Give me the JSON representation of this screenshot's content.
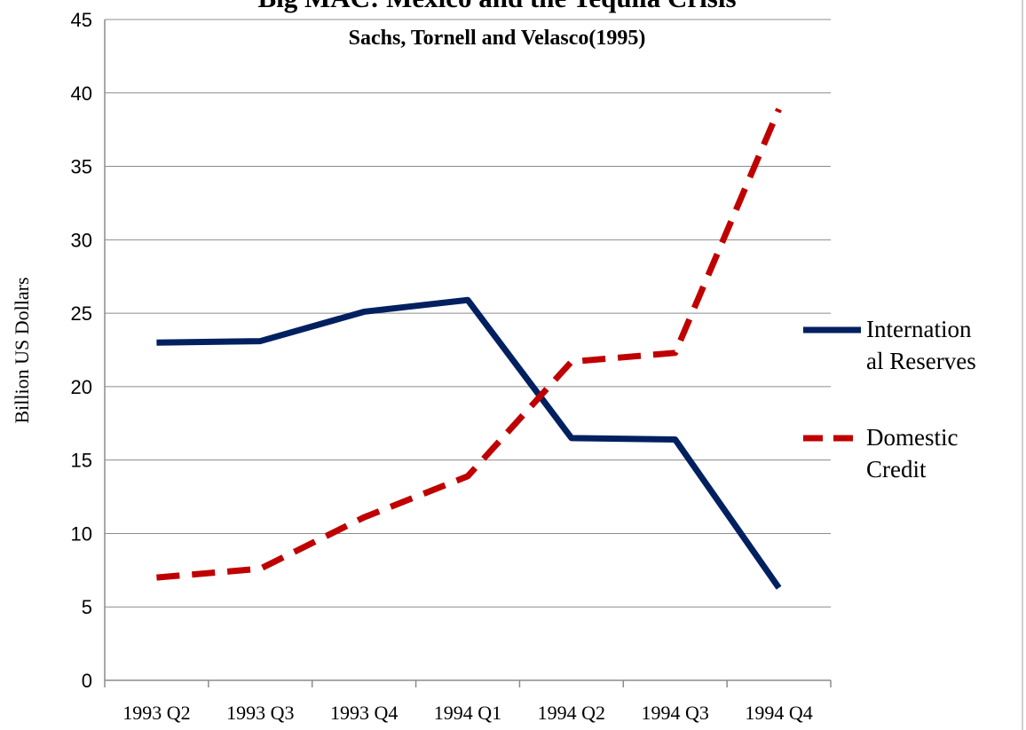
{
  "chart_data": {
    "type": "line",
    "title": "Big MAC: Mexico and the Tequila Crisis",
    "subtitle": "Sachs, Tornell and Velasco(1995)",
    "y_label": "Billion US Dollars",
    "categories": [
      "1993 Q2",
      "1993 Q3",
      "1993 Q4",
      "1994 Q1",
      "1994 Q2",
      "1994 Q3",
      "1994 Q4"
    ],
    "series": [
      {
        "name": "International Reserves",
        "color": "#002060",
        "dash": "solid",
        "values": [
          23.0,
          23.1,
          25.1,
          25.9,
          16.5,
          16.4,
          6.3
        ]
      },
      {
        "name": "Domestic Credit",
        "color": "#c00000",
        "dash": "dashed",
        "values": [
          7.0,
          7.6,
          11.1,
          13.9,
          21.7,
          22.3,
          38.9
        ]
      }
    ],
    "ylim": [
      0,
      45
    ],
    "yticks": [
      0,
      5,
      10,
      15,
      20,
      25,
      30,
      35,
      40,
      45
    ],
    "grid": true,
    "legend": "right"
  }
}
